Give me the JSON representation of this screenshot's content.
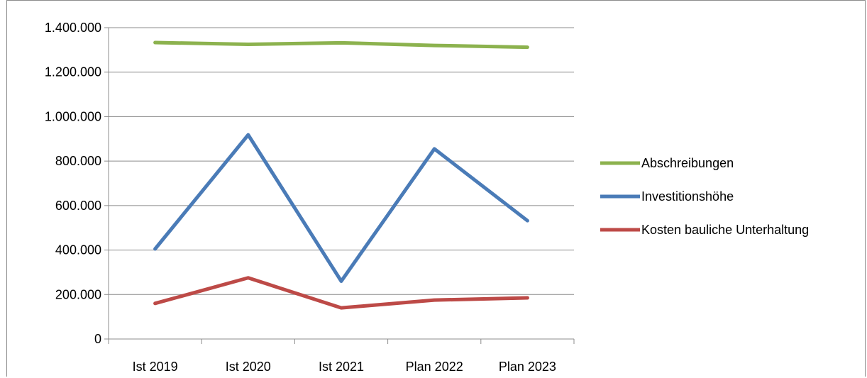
{
  "chart_data": {
    "type": "line",
    "title": "",
    "xlabel": "",
    "ylabel": "",
    "categories": [
      "Ist 2019",
      "Ist 2020",
      "Ist 2021",
      "Plan 2022",
      "Plan 2023"
    ],
    "ylim": [
      0,
      1400000
    ],
    "yticks": [
      0,
      200000,
      400000,
      600000,
      800000,
      1000000,
      1200000,
      1400000
    ],
    "ytick_labels": [
      "0",
      "200.000",
      "400.000",
      "600.000",
      "800.000",
      "1.000.000",
      "1.200.000",
      "1.400.000"
    ],
    "grid": true,
    "legend_position": "right",
    "series": [
      {
        "name": "Abschreibungen",
        "color": "#8cb24e",
        "values": [
          1333000,
          1325000,
          1332000,
          1320000,
          1312000
        ]
      },
      {
        "name": "Investitionshöhe",
        "color": "#4a7bb7",
        "values": [
          405000,
          918000,
          260000,
          855000,
          532000
        ]
      },
      {
        "name": "Kosten bauliche Unterhaltung",
        "color": "#bd4a47",
        "values": [
          160000,
          275000,
          140000,
          175000,
          185000
        ]
      }
    ]
  }
}
